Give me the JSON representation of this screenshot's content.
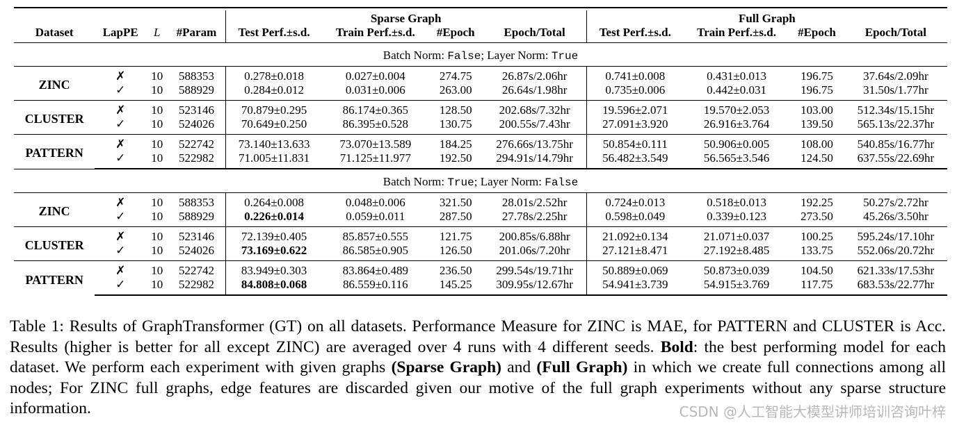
{
  "header": {
    "dataset": "Dataset",
    "lappe": "LapPE",
    "l": "L",
    "param": "#Param",
    "sparse_group": "Sparse Graph",
    "full_group": "Full Graph",
    "test_perf": "Test Perf.±s.d.",
    "train_perf": "Train Perf.±s.d.",
    "epoch": "#Epoch",
    "epoch_total": "Epoch/Total"
  },
  "sections": [
    {
      "config_pre1": "Batch Norm: ",
      "config_val1": "False",
      "config_pre2": "; Layer Norm: ",
      "config_val2": "True",
      "groups": [
        {
          "dataset": "ZINC",
          "rows": [
            {
              "lappe": "✗",
              "l": "10",
              "param": "588353",
              "s_test": "0.278±0.018",
              "s_train": "0.027±0.004",
              "s_epoch": "274.75",
              "s_time": "26.87s/2.06hr",
              "f_test": "0.741±0.008",
              "f_train": "0.431±0.013",
              "f_epoch": "196.75",
              "f_time": "37.64s/2.09hr"
            },
            {
              "lappe": "✓",
              "l": "10",
              "param": "588929",
              "s_test": "0.284±0.012",
              "s_train": "0.031±0.006",
              "s_epoch": "263.00",
              "s_time": "26.64s/1.98hr",
              "f_test": "0.735±0.006",
              "f_train": "0.442±0.031",
              "f_epoch": "196.75",
              "f_time": "31.50s/1.77hr"
            }
          ]
        },
        {
          "dataset": "CLUSTER",
          "rows": [
            {
              "lappe": "✗",
              "l": "10",
              "param": "523146",
              "s_test": "70.879±0.295",
              "s_train": "86.174±0.365",
              "s_epoch": "128.50",
              "s_time": "202.68s/7.32hr",
              "f_test": "19.596±2.071",
              "f_train": "19.570±2.053",
              "f_epoch": "103.00",
              "f_time": "512.34s/15.15hr"
            },
            {
              "lappe": "✓",
              "l": "10",
              "param": "524026",
              "s_test": "70.649±0.250",
              "s_train": "86.395±0.528",
              "s_epoch": "130.75",
              "s_time": "200.55s/7.43hr",
              "f_test": "27.091±3.920",
              "f_train": "26.916±3.764",
              "f_epoch": "139.50",
              "f_time": "565.13s/22.37hr"
            }
          ]
        },
        {
          "dataset": "PATTERN",
          "rows": [
            {
              "lappe": "✗",
              "l": "10",
              "param": "522742",
              "s_test": "73.140±13.633",
              "s_train": "73.070±13.589",
              "s_epoch": "184.25",
              "s_time": "276.66s/13.75hr",
              "f_test": "50.854±0.111",
              "f_train": "50.906±0.005",
              "f_epoch": "108.00",
              "f_time": "540.85s/16.77hr"
            },
            {
              "lappe": "✓",
              "l": "10",
              "param": "522982",
              "s_test": "71.005±11.831",
              "s_train": "71.125±11.977",
              "s_epoch": "192.50",
              "s_time": "294.91s/14.79hr",
              "f_test": "56.482±3.549",
              "f_train": "56.565±3.546",
              "f_epoch": "124.50",
              "f_time": "637.55s/22.69hr"
            }
          ]
        }
      ]
    },
    {
      "config_pre1": "Batch Norm: ",
      "config_val1": "True",
      "config_pre2": "; Layer Norm: ",
      "config_val2": "False",
      "groups": [
        {
          "dataset": "ZINC",
          "rows": [
            {
              "lappe": "✗",
              "l": "10",
              "param": "588353",
              "s_test": "0.264±0.008",
              "s_train": "0.048±0.006",
              "s_epoch": "321.50",
              "s_time": "28.01s/2.52hr",
              "f_test": "0.724±0.013",
              "f_train": "0.518±0.013",
              "f_epoch": "192.25",
              "f_time": "50.27s/2.72hr"
            },
            {
              "lappe": "✓",
              "l": "10",
              "param": "588929",
              "s_test": "0.226±0.014",
              "s_test_bold": true,
              "s_train": "0.059±0.011",
              "s_epoch": "287.50",
              "s_time": "27.78s/2.25hr",
              "f_test": "0.598±0.049",
              "f_train": "0.339±0.123",
              "f_epoch": "273.50",
              "f_time": "45.26s/3.50hr"
            }
          ]
        },
        {
          "dataset": "CLUSTER",
          "rows": [
            {
              "lappe": "✗",
              "l": "10",
              "param": "523146",
              "s_test": "72.139±0.405",
              "s_train": "85.857±0.555",
              "s_epoch": "121.75",
              "s_time": "200.85s/6.88hr",
              "f_test": "21.092±0.134",
              "f_train": "21.071±0.037",
              "f_epoch": "100.25",
              "f_time": "595.24s/17.10hr"
            },
            {
              "lappe": "✓",
              "l": "10",
              "param": "524026",
              "s_test": "73.169±0.622",
              "s_test_bold": true,
              "s_train": "86.585±0.905",
              "s_epoch": "126.50",
              "s_time": "201.06s/7.20hr",
              "f_test": "27.121±8.471",
              "f_train": "27.192±8.485",
              "f_epoch": "133.75",
              "f_time": "552.06s/20.72hr"
            }
          ]
        },
        {
          "dataset": "PATTERN",
          "rows": [
            {
              "lappe": "✗",
              "l": "10",
              "param": "522742",
              "s_test": "83.949±0.303",
              "s_train": "83.864±0.489",
              "s_epoch": "236.50",
              "s_time": "299.54s/19.71hr",
              "f_test": "50.889±0.069",
              "f_train": "50.873±0.039",
              "f_epoch": "104.50",
              "f_time": "621.33s/17.53hr"
            },
            {
              "lappe": "✓",
              "l": "10",
              "param": "522982",
              "s_test": "84.808±0.068",
              "s_test_bold": true,
              "s_train": "86.559±0.116",
              "s_epoch": "145.25",
              "s_time": "309.95s/12.67hr",
              "f_test": "54.941±3.739",
              "f_train": "54.915±3.769",
              "f_epoch": "117.75",
              "f_time": "683.53s/22.77hr"
            }
          ]
        }
      ]
    }
  ],
  "caption": {
    "p1": "Table 1: Results of GraphTransformer (GT) on all datasets. Performance Measure for ZINC is MAE, for PATTERN and CLUSTER is Acc. Results (higher is better for all except ZINC) are averaged over 4 runs with 4 different seeds. ",
    "bold1": "Bold",
    "p2": ": the best performing model for each dataset. We perform each experiment with given graphs ",
    "bold2": "(Sparse Graph)",
    "p3": " and ",
    "bold3": "(Full Graph)",
    "p4": " in which we create full connections among all nodes; For ZINC full graphs, edge features are discarded given our motive of the full graph experiments without any sparse structure information."
  },
  "watermark": "CSDN @人工智能大模型讲师培训咨询叶梓"
}
